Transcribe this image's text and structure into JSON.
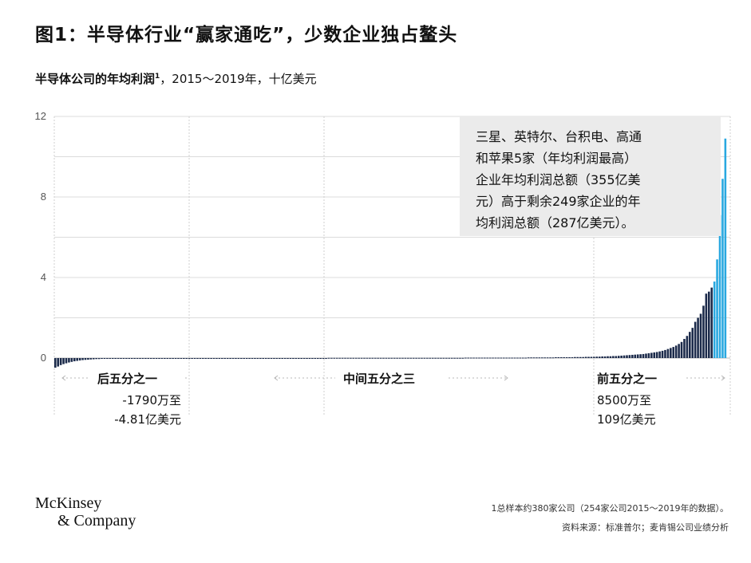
{
  "title": "图1：半导体行业“赢家通吃”，少数企业独占鳌头",
  "subtitle": {
    "main": "半导体公司的年均利润",
    "footnote_mark": "1",
    "rest": "，2015～2019年，十亿美元"
  },
  "annotation": {
    "lines": [
      "三星、英特尔、台积电、高通",
      "和苹果5家（年均利润最高）",
      "企业年均利润总额（355亿美",
      "元）高于剩余249家企业的年",
      "均利润总额（287亿美元）。"
    ]
  },
  "segments": {
    "bottom": {
      "label": "后五分之一",
      "range_line1": "-1790万至",
      "range_line2": "-4.81亿美元"
    },
    "middle": {
      "label": "中间五分之三"
    },
    "top": {
      "label": "前五分之一",
      "range_line1": "8500万至",
      "range_line2": "109亿美元"
    }
  },
  "footnote": "1总样本约380家公司（254家公司2015～2019年的数据）。",
  "source": "资料来源：标准普尔；麦肯锡公司业绩分析",
  "logo": {
    "line1": "McKinsey",
    "line2": "& Company"
  },
  "colors": {
    "bar_dark": "#1b2a4a",
    "bar_highlight": "#29a8e0",
    "grid": "#dcdcdc",
    "annotation_bg": "#ebebeb"
  },
  "chart_data": {
    "type": "bar",
    "title": "半导体公司的年均利润1，2015～2019年，十亿美元",
    "ylim": [
      -0.6,
      12
    ],
    "yticks": [
      0,
      4,
      8,
      12
    ],
    "grid": true,
    "n_companies": 254,
    "series": [
      {
        "name": "",
        "values": [
          -0.48,
          -0.42,
          -0.35,
          -0.3,
          -0.26,
          -0.22,
          -0.19,
          -0.16,
          -0.14,
          -0.12,
          -0.1,
          -0.09,
          -0.08,
          -0.07,
          -0.06,
          -0.05,
          -0.05,
          -0.04,
          -0.04,
          -0.03,
          -0.03,
          -0.03,
          -0.02,
          -0.02,
          -0.02,
          -0.02,
          -0.02,
          -0.02,
          -0.02,
          -0.02,
          -0.02,
          -0.02,
          -0.02,
          -0.02,
          -0.02,
          -0.02,
          -0.02,
          -0.02,
          -0.02,
          -0.02,
          -0.02,
          -0.02,
          -0.02,
          -0.02,
          -0.02,
          -0.02,
          -0.02,
          -0.02,
          -0.02,
          -0.02,
          -0.01,
          -0.01,
          -0.01,
          -0.01,
          -0.01,
          -0.01,
          -0.01,
          -0.01,
          -0.01,
          -0.01,
          -0.01,
          -0.01,
          -0.01,
          -0.01,
          -0.01,
          -0.01,
          -0.01,
          -0.01,
          -0.01,
          -0.01,
          -0.01,
          -0.01,
          -0.01,
          -0.01,
          -0.01,
          -0.01,
          -0.01,
          -0.01,
          -0.01,
          -0.01,
          -0.01,
          -0.01,
          -0.01,
          -0.01,
          -0.01,
          -0.01,
          -0.01,
          -0.01,
          -0.01,
          -0.01,
          -0.01,
          -0.01,
          -0.01,
          -0.01,
          -0.01,
          -0.01,
          -0.01,
          -0.01,
          -0.01,
          -0.01,
          0.01,
          0.01,
          0.01,
          0.01,
          0.01,
          0.01,
          0.01,
          0.01,
          0.01,
          0.01,
          0.01,
          0.01,
          0.01,
          0.01,
          0.01,
          0.01,
          0.01,
          0.01,
          0.01,
          0.01,
          0.01,
          0.01,
          0.01,
          0.01,
          0.01,
          0.01,
          0.01,
          0.01,
          0.01,
          0.01,
          0.01,
          0.01,
          0.01,
          0.01,
          0.01,
          0.01,
          0.01,
          0.01,
          0.01,
          0.01,
          0.01,
          0.01,
          0.01,
          0.01,
          0.01,
          0.01,
          0.01,
          0.01,
          0.01,
          0.01,
          0.02,
          0.02,
          0.02,
          0.02,
          0.02,
          0.02,
          0.02,
          0.02,
          0.02,
          0.02,
          0.02,
          0.02,
          0.02,
          0.02,
          0.02,
          0.02,
          0.02,
          0.02,
          0.02,
          0.02,
          0.02,
          0.02,
          0.02,
          0.03,
          0.03,
          0.03,
          0.03,
          0.03,
          0.03,
          0.03,
          0.03,
          0.03,
          0.03,
          0.04,
          0.04,
          0.04,
          0.04,
          0.04,
          0.04,
          0.04,
          0.05,
          0.05,
          0.05,
          0.05,
          0.06,
          0.06,
          0.06,
          0.06,
          0.07,
          0.07,
          0.08,
          0.08,
          0.09,
          0.09,
          0.1,
          0.1,
          0.11,
          0.12,
          0.13,
          0.14,
          0.15,
          0.16,
          0.17,
          0.18,
          0.19,
          0.2,
          0.22,
          0.24,
          0.26,
          0.28,
          0.3,
          0.33,
          0.36,
          0.4,
          0.45,
          0.5,
          0.55,
          0.62,
          0.7,
          0.8,
          0.95,
          1.1,
          1.3,
          1.5,
          1.8,
          2.0,
          2.2,
          2.6,
          3.2,
          3.3,
          3.5,
          3.8,
          4.9,
          7.1,
          8.9,
          10.9
        ]
      }
    ],
    "highlight_top": 5,
    "sections": [
      "后五分之一",
      "中间五分之三",
      "前五分之一"
    ]
  }
}
